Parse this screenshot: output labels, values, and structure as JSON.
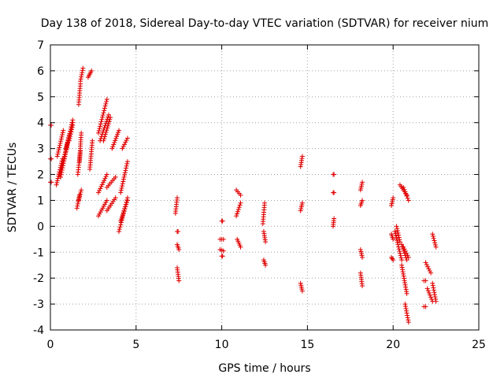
{
  "chart_data": {
    "type": "scatter",
    "title": "Day 138 of 2018, Sidereal Day-to-day VTEC variation (SDTVAR) for receiver nium",
    "xlabel": "GPS time / hours",
    "ylabel": "SDTVAR / TECUs",
    "xlim": [
      0,
      25
    ],
    "ylim": [
      -4,
      7
    ],
    "xticks": [
      "0",
      "5",
      "10",
      "15",
      "20",
      "25"
    ],
    "yticks": [
      "-4",
      "-3",
      "-2",
      "-1",
      "0",
      "1",
      "2",
      "3",
      "4",
      "5",
      "6",
      "7"
    ],
    "grid": true,
    "marker": "+",
    "color": "#e00000",
    "segments": [
      {
        "x": [
          0.0,
          0.05
        ],
        "y": [
          3.9,
          3.9
        ]
      },
      {
        "x": [
          0.0,
          0.05
        ],
        "y": [
          2.6,
          2.6
        ]
      },
      {
        "x": [
          0.0,
          0.05
        ],
        "y": [
          1.7,
          1.7
        ]
      },
      {
        "x": [
          0.35,
          0.7
        ],
        "y": [
          1.6,
          2.6
        ]
      },
      {
        "x": [
          0.4,
          0.75
        ],
        "y": [
          2.7,
          3.7
        ]
      },
      {
        "x": [
          0.55,
          1.0
        ],
        "y": [
          2.0,
          3.2
        ]
      },
      {
        "x": [
          0.6,
          1.1
        ],
        "y": [
          1.9,
          3.5
        ]
      },
      {
        "x": [
          0.8,
          1.3
        ],
        "y": [
          2.6,
          4.1
        ]
      },
      {
        "x": [
          0.9,
          1.3
        ],
        "y": [
          3.0,
          4.0
        ]
      },
      {
        "x": [
          1.1,
          1.3
        ],
        "y": [
          3.3,
          3.9
        ]
      },
      {
        "x": [
          1.55,
          1.7
        ],
        "y": [
          0.7,
          1.2
        ]
      },
      {
        "x": [
          1.65,
          1.8
        ],
        "y": [
          1.0,
          1.4
        ]
      },
      {
        "x": [
          1.6,
          1.75
        ],
        "y": [
          2.0,
          2.9
        ]
      },
      {
        "x": [
          1.7,
          1.8
        ],
        "y": [
          2.5,
          3.6
        ]
      },
      {
        "x": [
          1.65,
          1.75
        ],
        "y": [
          4.7,
          5.5
        ]
      },
      {
        "x": [
          1.75,
          1.9
        ],
        "y": [
          5.6,
          6.1
        ]
      },
      {
        "x": [
          2.2,
          2.4
        ],
        "y": [
          5.75,
          6.0
        ]
      },
      {
        "x": [
          2.3,
          2.45
        ],
        "y": [
          2.2,
          3.3
        ]
      },
      {
        "x": [
          2.8,
          3.3
        ],
        "y": [
          0.4,
          1.0
        ]
      },
      {
        "x": [
          2.8,
          3.3
        ],
        "y": [
          1.3,
          2.0
        ]
      },
      {
        "x": [
          2.8,
          3.3
        ],
        "y": [
          3.6,
          4.9
        ]
      },
      {
        "x": [
          2.9,
          3.4
        ],
        "y": [
          3.3,
          4.3
        ]
      },
      {
        "x": [
          3.1,
          3.5
        ],
        "y": [
          3.3,
          4.2
        ]
      },
      {
        "x": [
          3.3,
          3.8
        ],
        "y": [
          1.5,
          1.9
        ]
      },
      {
        "x": [
          3.3,
          3.8
        ],
        "y": [
          0.6,
          1.1
        ]
      },
      {
        "x": [
          3.6,
          4.0
        ],
        "y": [
          3.0,
          3.7
        ]
      },
      {
        "x": [
          4.0,
          4.5
        ],
        "y": [
          -0.2,
          1.1
        ]
      },
      {
        "x": [
          4.1,
          4.5
        ],
        "y": [
          1.3,
          2.5
        ]
      },
      {
        "x": [
          4.1,
          4.5
        ],
        "y": [
          0.2,
          1.0
        ]
      },
      {
        "x": [
          4.2,
          4.5
        ],
        "y": [
          3.0,
          3.4
        ]
      },
      {
        "x": [
          7.3,
          7.4
        ],
        "y": [
          0.5,
          1.1
        ]
      },
      {
        "x": [
          7.4,
          7.45
        ],
        "y": [
          -0.2,
          -0.2
        ]
      },
      {
        "x": [
          7.4,
          7.5
        ],
        "y": [
          -0.7,
          -0.9
        ]
      },
      {
        "x": [
          7.4,
          7.5
        ],
        "y": [
          -1.6,
          -2.1
        ]
      },
      {
        "x": [
          10.0,
          10.05
        ],
        "y": [
          0.2,
          0.2
        ]
      },
      {
        "x": [
          9.9,
          10.1
        ],
        "y": [
          -0.5,
          -0.5
        ]
      },
      {
        "x": [
          9.9,
          10.1
        ],
        "y": [
          -0.9,
          -0.95
        ]
      },
      {
        "x": [
          10.0,
          10.05
        ],
        "y": [
          -1.15,
          -1.15
        ]
      },
      {
        "x": [
          10.85,
          11.1
        ],
        "y": [
          1.4,
          1.2
        ]
      },
      {
        "x": [
          10.85,
          11.1
        ],
        "y": [
          0.4,
          0.9
        ]
      },
      {
        "x": [
          10.9,
          11.1
        ],
        "y": [
          -0.5,
          -0.8
        ]
      },
      {
        "x": [
          12.4,
          12.5
        ],
        "y": [
          0.1,
          0.9
        ]
      },
      {
        "x": [
          12.45,
          12.55
        ],
        "y": [
          -0.2,
          -0.6
        ]
      },
      {
        "x": [
          12.45,
          12.55
        ],
        "y": [
          -1.3,
          -1.5
        ]
      },
      {
        "x": [
          14.6,
          14.7
        ],
        "y": [
          2.3,
          2.7
        ]
      },
      {
        "x": [
          14.6,
          14.7
        ],
        "y": [
          0.6,
          0.9
        ]
      },
      {
        "x": [
          14.6,
          14.7
        ],
        "y": [
          -2.2,
          -2.5
        ]
      },
      {
        "x": [
          16.5,
          16.55
        ],
        "y": [
          2.0,
          2.0
        ]
      },
      {
        "x": [
          16.5,
          16.55
        ],
        "y": [
          1.3,
          1.3
        ]
      },
      {
        "x": [
          16.5,
          16.55
        ],
        "y": [
          0.0,
          0.3
        ]
      },
      {
        "x": [
          18.1,
          18.2
        ],
        "y": [
          1.4,
          1.7
        ]
      },
      {
        "x": [
          18.1,
          18.2
        ],
        "y": [
          0.8,
          1.0
        ]
      },
      {
        "x": [
          18.1,
          18.2
        ],
        "y": [
          -0.9,
          -1.2
        ]
      },
      {
        "x": [
          18.1,
          18.2
        ],
        "y": [
          -1.8,
          -2.3
        ]
      },
      {
        "x": [
          19.9,
          20.0
        ],
        "y": [
          0.8,
          1.1
        ]
      },
      {
        "x": [
          19.9,
          20.0
        ],
        "y": [
          -0.3,
          -0.5
        ]
      },
      {
        "x": [
          19.9,
          20.0
        ],
        "y": [
          -1.2,
          -1.3
        ]
      },
      {
        "x": [
          20.1,
          20.5
        ],
        "y": [
          -0.2,
          -1.3
        ]
      },
      {
        "x": [
          20.2,
          20.4
        ],
        "y": [
          0.0,
          -0.6
        ]
      },
      {
        "x": [
          20.4,
          20.8
        ],
        "y": [
          1.6,
          1.2
        ]
      },
      {
        "x": [
          20.6,
          20.9
        ],
        "y": [
          1.5,
          1.0
        ]
      },
      {
        "x": [
          20.5,
          20.8
        ],
        "y": [
          -0.7,
          -1.3
        ]
      },
      {
        "x": [
          20.6,
          20.9
        ],
        "y": [
          -0.8,
          -1.2
        ]
      },
      {
        "x": [
          20.5,
          20.8
        ],
        "y": [
          -1.5,
          -2.6
        ]
      },
      {
        "x": [
          20.7,
          20.9
        ],
        "y": [
          -3.0,
          -3.7
        ]
      },
      {
        "x": [
          21.8,
          21.9
        ],
        "y": [
          -2.1,
          -2.1
        ]
      },
      {
        "x": [
          21.8,
          21.9
        ],
        "y": [
          -3.1,
          -3.1
        ]
      },
      {
        "x": [
          21.9,
          22.2
        ],
        "y": [
          -1.4,
          -1.8
        ]
      },
      {
        "x": [
          22.0,
          22.3
        ],
        "y": [
          -2.4,
          -2.9
        ]
      },
      {
        "x": [
          22.3,
          22.5
        ],
        "y": [
          -0.3,
          -0.8
        ]
      },
      {
        "x": [
          22.3,
          22.5
        ],
        "y": [
          -2.2,
          -2.9
        ]
      }
    ]
  }
}
